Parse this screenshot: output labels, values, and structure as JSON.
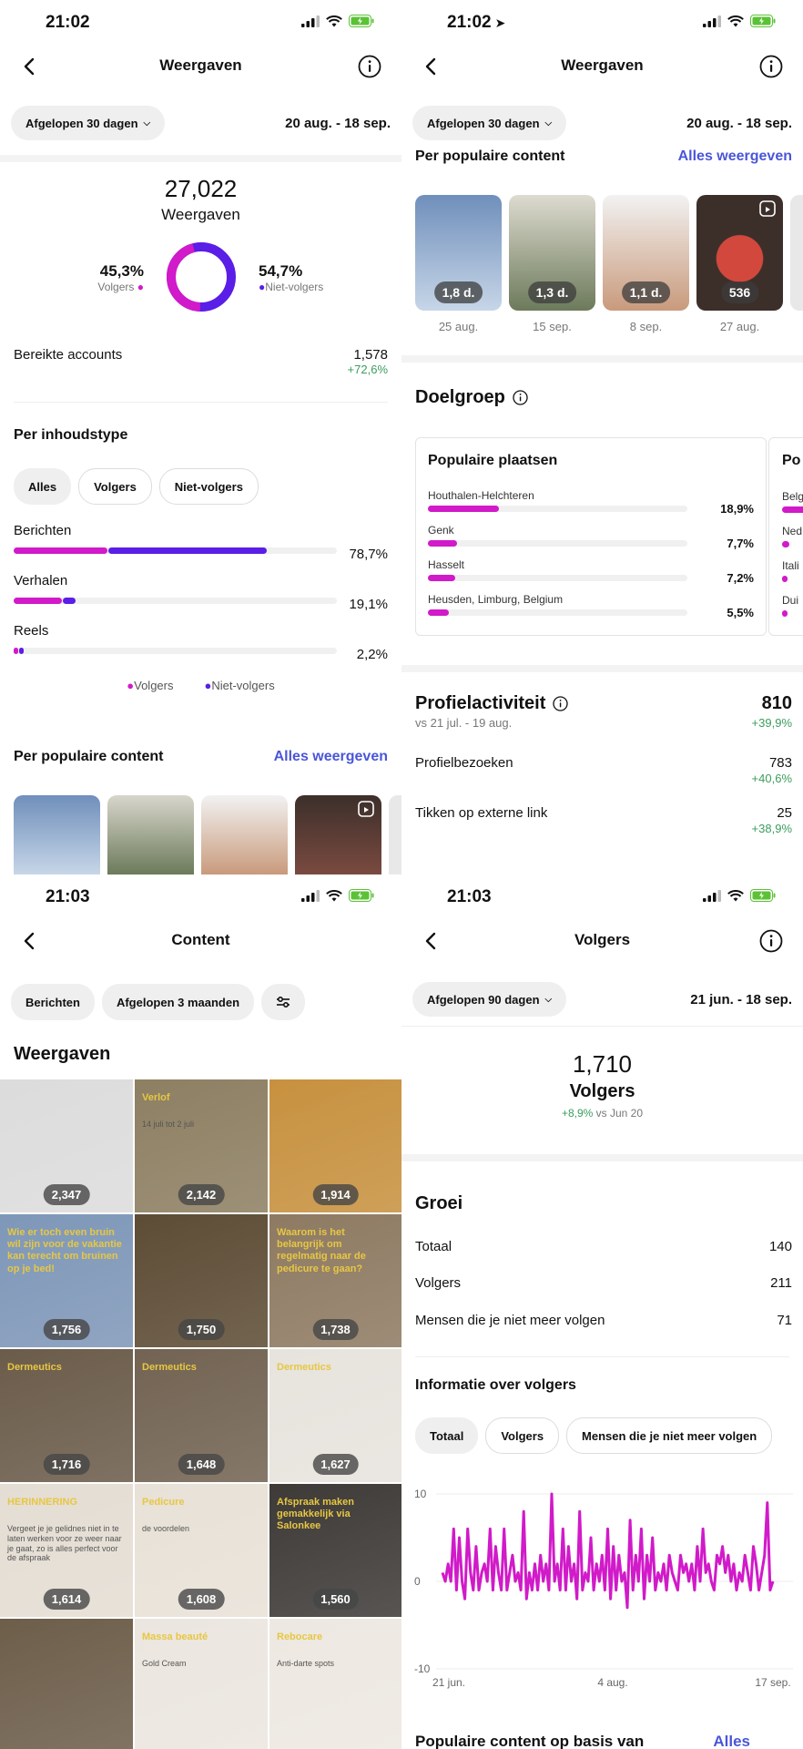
{
  "screen1": {
    "time": "21:02",
    "title": "Weergaven",
    "filter": "Afgelopen 30 dagen",
    "date_range": "20 aug. - 18 sep.",
    "total": "27,022",
    "total_label": "Weergaven",
    "followers_pct": "45,3%",
    "followers_label": "Volgers",
    "nonfollowers_pct": "54,7%",
    "nonfollowers_label": "Niet-volgers",
    "reached_label": "Bereikte accounts",
    "reached_value": "1,578",
    "reached_change": "+72,6%",
    "content_type_title": "Per inhoudstype",
    "tabs": [
      "Alles",
      "Volgers",
      "Niet-volgers"
    ],
    "types": [
      {
        "label": "Berichten",
        "pct": "78,7%",
        "followers": 0.29,
        "nonfollowers": 0.49
      },
      {
        "label": "Verhalen",
        "pct": "19,1%",
        "followers": 0.15,
        "nonfollowers": 0.04
      },
      {
        "label": "Reels",
        "pct": "2,2%",
        "followers": 0.01,
        "nonfollowers": 0.01
      }
    ],
    "legend": [
      "Volgers",
      "Niet-volgers"
    ],
    "popular_title": "Per populaire content",
    "see_all": "Alles weergeven"
  },
  "screen2": {
    "time": "21:02",
    "title": "Weergaven",
    "filter": "Afgelopen 30 dagen",
    "date_range": "20 aug. - 18 sep.",
    "popular_title": "Per populaire content",
    "see_all": "Alles weergeven",
    "thumbs": [
      {
        "badge": "1,8 d.",
        "date": "25 aug."
      },
      {
        "badge": "1,3 d.",
        "date": "15 sep."
      },
      {
        "badge": "1,1 d.",
        "date": "8 sep."
      },
      {
        "badge": "536",
        "date": "27 aug."
      }
    ],
    "audience_title": "Doelgroep",
    "places_title": "Populaire plaatsen",
    "places": [
      {
        "name": "Houthalen-Helchteren",
        "pct": "18,9%",
        "value": 0.189
      },
      {
        "name": "Genk",
        "pct": "7,7%",
        "value": 0.077
      },
      {
        "name": "Hasselt",
        "pct": "7,2%",
        "value": 0.072
      },
      {
        "name": "Heusden, Limburg, Belgium",
        "pct": "5,5%",
        "value": 0.055
      }
    ],
    "next_card": {
      "title": "Po",
      "rows": [
        "Belg",
        "Ned",
        "Itali",
        "Dui"
      ]
    },
    "profile_title": "Profielactiviteit",
    "profile_sub": "vs 21 jul. - 19 aug.",
    "profile_total": "810",
    "profile_change": "+39,9%",
    "profile_rows": [
      {
        "label": "Profielbezoeken",
        "value": "783",
        "change": "+40,6%"
      },
      {
        "label": "Tikken op externe link",
        "value": "25",
        "change": "+38,9%"
      }
    ]
  },
  "screen3": {
    "time": "21:03",
    "title": "Content",
    "filter_type": "Berichten",
    "filter_period": "Afgelopen 3 maanden",
    "section_title": "Weergaven",
    "grid": [
      {
        "value": "2,347",
        "color": "#dcdcdc"
      },
      {
        "value": "2,142",
        "color": "#8d7f62",
        "overlay": "Verlof",
        "overlay_sub": "14 juli tot 2 juli"
      },
      {
        "value": "1,914",
        "color": "#c7913f"
      },
      {
        "value": "1,756",
        "color": "#7e97b8",
        "overlay": "Wie er toch even bruin wil zijn voor de vakantie kan terecht om bruinen op je bed!"
      },
      {
        "value": "1,750",
        "color": "#5d4c35"
      },
      {
        "value": "1,738",
        "color": "#8e7a62",
        "overlay": "Waarom is het belangrijk om regelmatig naar de pedicure te gaan?"
      },
      {
        "value": "1,716",
        "color": "#6b5c4a",
        "overlay": "Dermeutics"
      },
      {
        "value": "1,648",
        "color": "#726352",
        "overlay": "Dermeutics"
      },
      {
        "value": "1,627",
        "color": "#e7e3dd",
        "overlay": "Dermeutics"
      },
      {
        "value": "1,614",
        "color": "#e4ddd3",
        "overlay": "HERINNERING",
        "overlay_sub": "Vergeet je je gelidnes niet in te laten werken voor ze weer naar je gaat, zo is alles perfect voor de afspraak"
      },
      {
        "value": "1,608",
        "color": "#e8e1d7",
        "overlay": "Pedicure",
        "overlay_sub": "de voordelen"
      },
      {
        "value": "1,560",
        "color": "#3e3a38",
        "overlay": "Afspraak maken gemakkelijk via Salonkee"
      },
      {
        "value": "",
        "color": "#6d5e4a"
      },
      {
        "value": "",
        "color": "#ebe6df",
        "overlay": "Massa beauté",
        "overlay_sub": "Gold Cream"
      },
      {
        "value": "",
        "color": "#ede8e1",
        "overlay": "Rebocare",
        "overlay_sub": "Anti-darte spots"
      }
    ]
  },
  "screen4": {
    "time": "21:03",
    "title": "Volgers",
    "filter": "Afgelopen 90 dagen",
    "date_range": "21 jun. - 18 sep.",
    "total": "1,710",
    "total_label": "Volgers",
    "change": "+8,9%",
    "change_ref": "vs Jun 20",
    "growth_title": "Groei",
    "growth_rows": [
      {
        "label": "Totaal",
        "value": "140"
      },
      {
        "label": "Volgers",
        "value": "211"
      },
      {
        "label": "Mensen die je niet meer volgen",
        "value": "71"
      }
    ],
    "info_title": "Informatie over volgers",
    "info_tabs": [
      "Totaal",
      "Volgers",
      "Mensen die je niet meer volgen"
    ],
    "bottom_title": "Populaire content op basis van",
    "bottom_link": "Alles"
  },
  "colors": {
    "followers": "#d11ac9",
    "nonfollowers": "#5a1ee6",
    "link": "#4a56d8",
    "positive": "#3b9d5c"
  },
  "chart_data": {
    "type": "line",
    "xlabels": [
      "21 jun.",
      "4 aug.",
      "17 sep."
    ],
    "ylim": [
      -10,
      10
    ],
    "yticks": [
      10,
      0,
      -10
    ],
    "series": [
      {
        "values": [
          1,
          0,
          2,
          0,
          6,
          -1,
          5,
          0,
          -2,
          6,
          1,
          -1,
          4,
          -1,
          1,
          2,
          0,
          6,
          -1,
          4,
          1,
          -1,
          6,
          -1,
          1,
          3,
          0,
          1,
          -1,
          8,
          -2,
          1,
          -1,
          2,
          -1,
          3,
          0,
          2,
          -1,
          10,
          0,
          2,
          -1,
          6,
          -1,
          4,
          0,
          2,
          -2,
          8,
          -1,
          1,
          0,
          5,
          -1,
          2,
          0,
          3,
          -1,
          6,
          -2,
          4,
          -1,
          3,
          0,
          1,
          -3,
          7,
          -1,
          3,
          0,
          6,
          -2,
          3,
          0,
          5,
          -1,
          1,
          0,
          2,
          -1,
          3,
          1,
          0,
          -1,
          3,
          1,
          2,
          0,
          2,
          -1,
          4,
          0,
          6,
          1,
          2,
          0,
          -1,
          3,
          2,
          4,
          1,
          3,
          0,
          2,
          -1,
          1,
          0,
          3,
          1,
          -1,
          4,
          2,
          -1,
          1,
          3,
          9,
          -1,
          0
        ]
      }
    ]
  }
}
